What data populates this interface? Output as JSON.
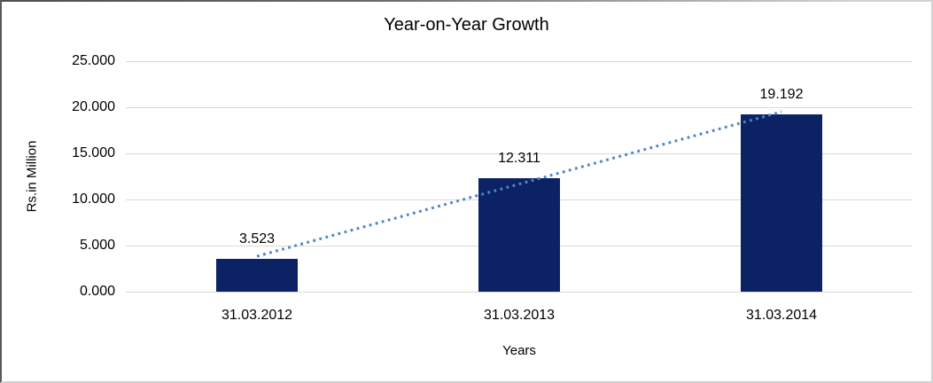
{
  "chart_data": {
    "type": "bar",
    "title": "Year-on-Year Growth",
    "xlabel": "Years",
    "ylabel": "Rs.in Million",
    "categories": [
      "31.03.2012",
      "31.03.2013",
      "31.03.2014"
    ],
    "values": [
      3.523,
      12.311,
      19.192
    ],
    "data_labels": [
      "3.523",
      "12.311",
      "19.192"
    ],
    "ylim": [
      0,
      25
    ],
    "yticks": [
      0,
      5,
      10,
      15,
      20,
      25
    ],
    "ytick_labels": [
      "0.000",
      "5.000",
      "10.000",
      "15.000",
      "20.000",
      "25.000"
    ],
    "grid": true,
    "legend": "none",
    "bar_color": "#0b2265",
    "gridline_color": "#d9d9d9",
    "trendline": {
      "type": "linear",
      "style": "dotted",
      "color": "#4f86c6"
    }
  }
}
